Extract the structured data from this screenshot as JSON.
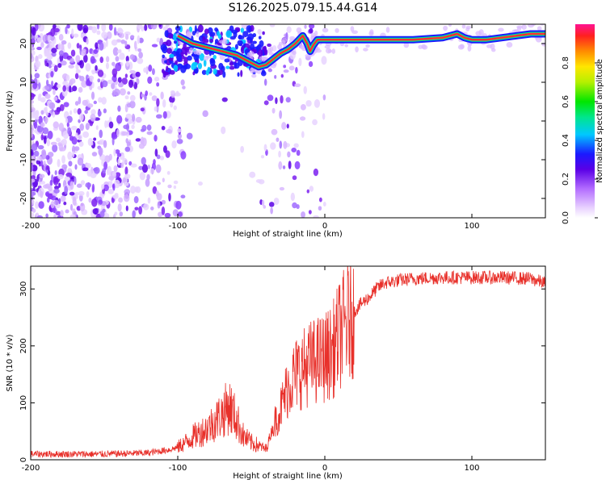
{
  "title": "S126.2025.079.15.44.G14",
  "chart_data": [
    {
      "type": "heatmap",
      "xlabel": "Height of straight line (km)",
      "ylabel": "Frequency (Hz)",
      "xlim": [
        -200,
        150
      ],
      "ylim": [
        -25,
        25
      ],
      "xticks": [
        -200,
        -100,
        0,
        100
      ],
      "yticks": [
        -20,
        -10,
        0,
        10,
        20
      ],
      "colorbar": {
        "label": "Normalized spectral amplitude",
        "range": [
          0,
          1
        ],
        "ticks": [
          0.0,
          0.2,
          0.4,
          0.6,
          0.8
        ],
        "tick_labels": [
          "0.0",
          "0.2",
          "0.4",
          "0.6",
          "0.8"
        ]
      },
      "ridge": {
        "x": [
          -100,
          -90,
          -80,
          -70,
          -60,
          -50,
          -45,
          -40,
          -35,
          -30,
          -25,
          -20,
          -15,
          -12,
          -10,
          -8,
          -5,
          0,
          10,
          20,
          40,
          60,
          80,
          90,
          95,
          100,
          110,
          120,
          130,
          140,
          150
        ],
        "y": [
          22,
          20,
          19,
          18,
          17,
          15,
          14,
          14.5,
          16,
          17.5,
          18.5,
          20,
          22,
          20,
          18,
          19.5,
          21,
          21,
          21,
          21,
          21,
          21,
          21.5,
          22.5,
          21.5,
          21,
          21,
          21.5,
          22,
          22.5,
          22.5
        ]
      },
      "grid": false
    },
    {
      "type": "line",
      "xlabel": "Height of straight line (km)",
      "ylabel": "SNR (10 * v/v)",
      "xlim": [
        -200,
        150
      ],
      "ylim": [
        0,
        340
      ],
      "xticks": [
        -200,
        -100,
        0,
        100
      ],
      "yticks": [
        0,
        100,
        200,
        300
      ],
      "color": "#e8302a",
      "envelope": {
        "x": [
          -200,
          -150,
          -120,
          -105,
          -100,
          -95,
          -90,
          -80,
          -70,
          -65,
          -60,
          -55,
          -50,
          -45,
          -40,
          -35,
          -30,
          -25,
          -20,
          -15,
          -10,
          -5,
          0,
          5,
          10,
          15,
          20,
          25,
          30,
          35,
          40,
          50,
          60,
          80,
          100,
          120,
          140,
          150
        ],
        "y": [
          10,
          10,
          12,
          18,
          22,
          30,
          40,
          55,
          80,
          95,
          70,
          40,
          30,
          25,
          18,
          60,
          90,
          130,
          150,
          160,
          170,
          175,
          180,
          190,
          220,
          240,
          260,
          275,
          285,
          300,
          310,
          315,
          318,
          320,
          320,
          320,
          318,
          310
        ]
      },
      "grid": false
    }
  ]
}
